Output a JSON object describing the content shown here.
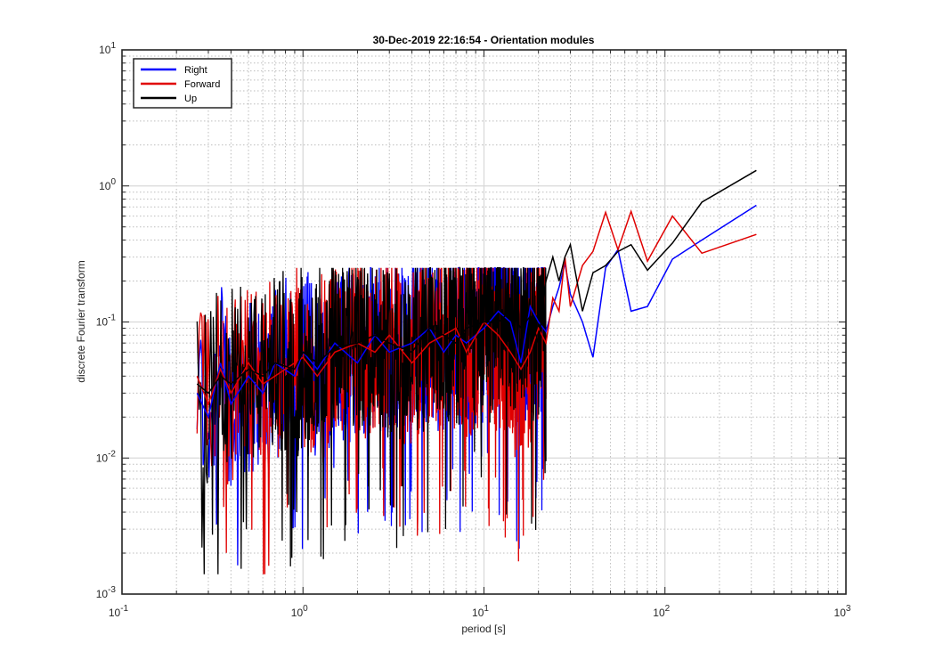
{
  "chart_data": {
    "type": "line",
    "title": "30-Dec-2019 22:16:54 - Orientation modules",
    "xlabel": "period [s]",
    "ylabel": "discrete Fourier transform",
    "xscale": "log",
    "yscale": "log",
    "xlim": [
      0.1,
      1000
    ],
    "ylim": [
      0.001,
      10
    ],
    "grid": true,
    "minor_grid": true,
    "legend_position": "top-left",
    "x_tick_labels": [
      {
        "base": "10",
        "exp": "-1"
      },
      {
        "base": "10",
        "exp": "0"
      },
      {
        "base": "10",
        "exp": "1"
      },
      {
        "base": "10",
        "exp": "2"
      },
      {
        "base": "10",
        "exp": "3"
      }
    ],
    "y_tick_labels": [
      {
        "base": "10",
        "exp": "-3"
      },
      {
        "base": "10",
        "exp": "-2"
      },
      {
        "base": "10",
        "exp": "-1"
      },
      {
        "base": "10",
        "exp": "0"
      },
      {
        "base": "10",
        "exp": "1"
      }
    ],
    "dense_region": {
      "x_range": [
        0.26,
        22
      ],
      "note": "densely overlapping noisy traces"
    },
    "series": [
      {
        "name": "Right",
        "color": "#0000ff",
        "x": [
          0.26,
          0.3,
          0.35,
          0.4,
          0.5,
          0.6,
          0.7,
          0.9,
          1.0,
          1.2,
          1.5,
          2,
          2.5,
          3,
          4,
          5,
          6,
          7,
          8,
          10,
          12,
          14,
          16,
          18,
          20,
          22,
          24,
          26,
          28,
          30,
          35,
          40,
          47,
          55,
          65,
          80,
          110,
          160,
          320
        ],
        "y": [
          0.03,
          0.02,
          0.05,
          0.025,
          0.04,
          0.03,
          0.05,
          0.04,
          0.06,
          0.045,
          0.07,
          0.05,
          0.08,
          0.06,
          0.07,
          0.09,
          0.06,
          0.08,
          0.07,
          0.09,
          0.12,
          0.1,
          0.05,
          0.13,
          0.1,
          0.085,
          0.13,
          0.18,
          0.27,
          0.16,
          0.1,
          0.055,
          0.25,
          0.34,
          0.12,
          0.13,
          0.29,
          0.4,
          0.72
        ]
      },
      {
        "name": "Forward",
        "color": "#e00000",
        "x": [
          0.26,
          0.3,
          0.35,
          0.4,
          0.5,
          0.6,
          0.7,
          0.9,
          1.0,
          1.2,
          1.5,
          2,
          2.5,
          3,
          4,
          5,
          6,
          7,
          8,
          10,
          12,
          14,
          16,
          18,
          20,
          22,
          24,
          26,
          28,
          30,
          35,
          40,
          47,
          55,
          65,
          80,
          110,
          160,
          320
        ],
        "y": [
          0.04,
          0.025,
          0.045,
          0.03,
          0.05,
          0.035,
          0.04,
          0.05,
          0.055,
          0.04,
          0.06,
          0.07,
          0.06,
          0.08,
          0.05,
          0.07,
          0.08,
          0.09,
          0.06,
          0.1,
          0.08,
          0.06,
          0.045,
          0.06,
          0.09,
          0.07,
          0.15,
          0.12,
          0.3,
          0.13,
          0.26,
          0.33,
          0.64,
          0.34,
          0.65,
          0.28,
          0.6,
          0.32,
          0.44
        ]
      },
      {
        "name": "Up",
        "color": "#000000",
        "x": [
          0.26,
          0.3,
          0.35,
          0.4,
          0.5,
          0.6,
          0.7,
          0.9,
          1.0,
          1.2,
          1.5,
          2,
          2.5,
          3,
          4,
          5,
          6,
          7,
          8,
          10,
          12,
          14,
          16,
          18,
          20,
          22,
          24,
          26,
          28,
          30,
          35,
          40,
          47,
          55,
          65,
          80,
          110,
          160,
          320
        ],
        "y": [
          0.035,
          0.03,
          0.04,
          0.035,
          0.045,
          0.04,
          0.05,
          0.045,
          0.06,
          0.05,
          0.065,
          0.07,
          0.08,
          0.07,
          0.06,
          0.09,
          0.08,
          0.07,
          0.09,
          0.1,
          0.1,
          0.12,
          0.09,
          0.11,
          0.07,
          0.2,
          0.3,
          0.2,
          0.3,
          0.37,
          0.12,
          0.23,
          0.26,
          0.33,
          0.37,
          0.24,
          0.38,
          0.76,
          1.3
        ]
      }
    ]
  }
}
